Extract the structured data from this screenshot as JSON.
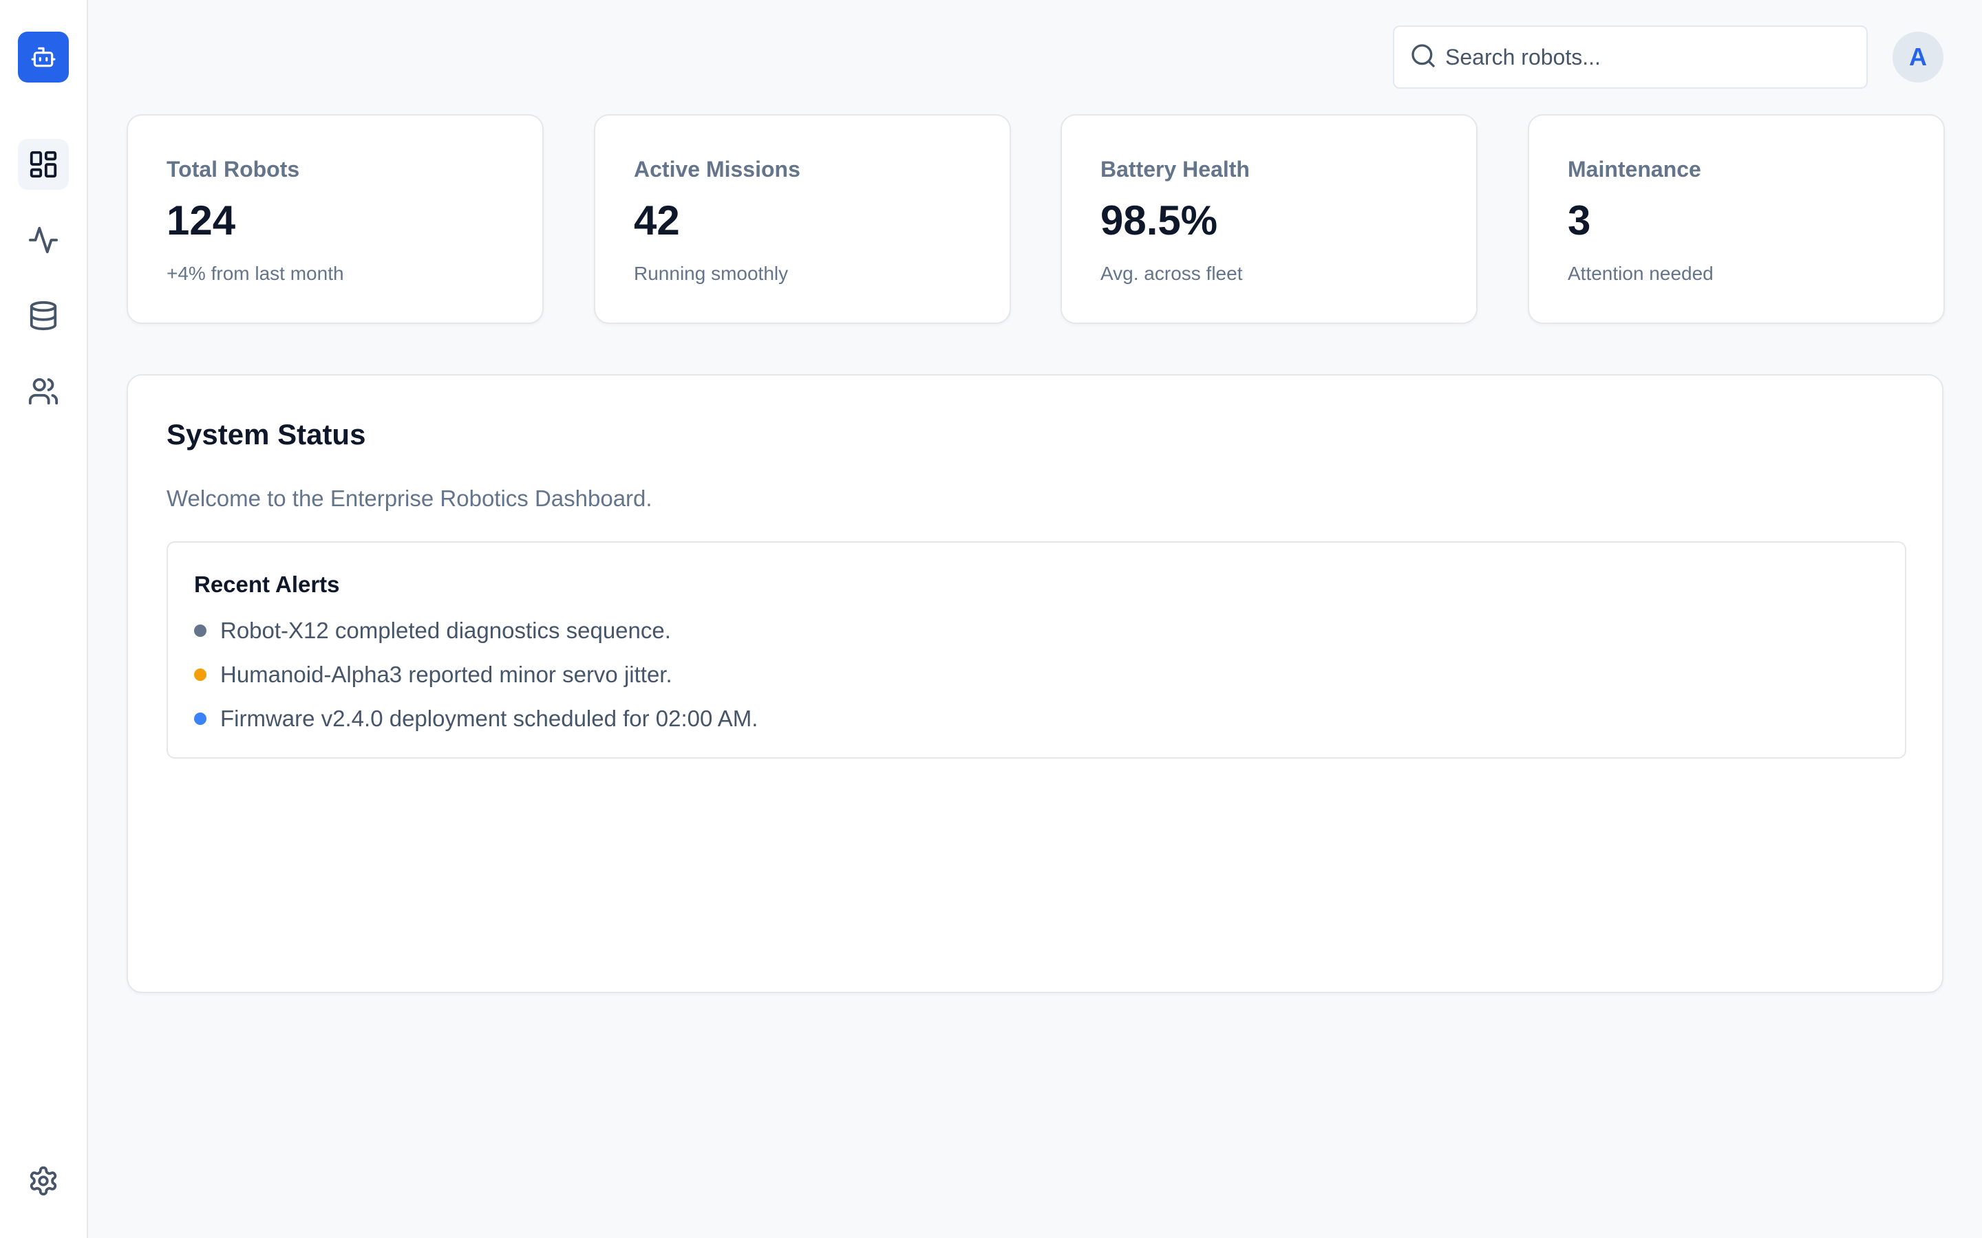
{
  "app": {
    "logo_icon": "robot-icon"
  },
  "sidebar": {
    "items": [
      {
        "icon": "dashboard-icon",
        "active": true
      },
      {
        "icon": "activity-icon",
        "active": false
      },
      {
        "icon": "database-icon",
        "active": false
      },
      {
        "icon": "users-icon",
        "active": false
      }
    ],
    "footer_icon": "gear-icon"
  },
  "header": {
    "search": {
      "placeholder": "Search robots...",
      "value": ""
    },
    "avatar_initial": "A"
  },
  "stats": [
    {
      "label": "Total Robots",
      "value": "124",
      "sub": "+4% from last month"
    },
    {
      "label": "Active Missions",
      "value": "42",
      "sub": "Running smoothly"
    },
    {
      "label": "Battery Health",
      "value": "98.5%",
      "sub": "Avg. across fleet"
    },
    {
      "label": "Maintenance",
      "value": "3",
      "sub": "Attention needed"
    }
  ],
  "status": {
    "title": "System Status",
    "description": "Welcome to the Enterprise Robotics Dashboard.",
    "alerts_title": "Recent Alerts",
    "alerts": [
      {
        "text": "Robot-X12 completed diagnostics sequence.",
        "color": "#64748b"
      },
      {
        "text": "Humanoid-Alpha3 reported minor servo jitter.",
        "color": "#f59e0b"
      },
      {
        "text": "Firmware v2.4.0 deployment scheduled for 02:00 AM.",
        "color": "#3b82f6"
      }
    ]
  },
  "colors": {
    "accent": "#2563eb",
    "background": "#f8f9fb",
    "card": "#ffffff"
  }
}
